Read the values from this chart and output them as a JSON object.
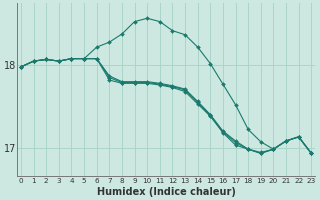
{
  "xlabel": "Humidex (Indice chaleur)",
  "background_color": "#cce8e0",
  "grid_color": "#aad4ca",
  "line_color": "#1a7a6e",
  "x_values": [
    0,
    1,
    2,
    3,
    4,
    5,
    6,
    7,
    8,
    9,
    10,
    11,
    12,
    13,
    14,
    15,
    16,
    17,
    18,
    19,
    20,
    21,
    22,
    23
  ],
  "series": [
    [
      17.98,
      18.05,
      18.07,
      18.05,
      18.08,
      18.08,
      18.08,
      17.82,
      17.78,
      17.78,
      17.78,
      17.76,
      17.73,
      17.68,
      17.53,
      17.38,
      17.18,
      17.03,
      16.98,
      16.93,
      16.98,
      17.08,
      17.13,
      16.93
    ],
    [
      17.98,
      18.05,
      18.07,
      18.05,
      18.08,
      18.08,
      18.22,
      18.28,
      18.38,
      18.53,
      18.57,
      18.53,
      18.42,
      18.37,
      18.22,
      18.02,
      17.77,
      17.52,
      17.22,
      17.07,
      16.98,
      17.08,
      17.13,
      16.93
    ],
    [
      17.98,
      18.05,
      18.07,
      18.05,
      18.08,
      18.08,
      18.08,
      17.87,
      17.8,
      17.8,
      17.8,
      17.78,
      17.75,
      17.71,
      17.56,
      17.4,
      17.2,
      17.08,
      16.98,
      16.94,
      16.98,
      17.08,
      17.13,
      16.93
    ],
    [
      17.98,
      18.05,
      18.07,
      18.05,
      18.08,
      18.08,
      18.08,
      17.85,
      17.79,
      17.79,
      17.79,
      17.77,
      17.74,
      17.7,
      17.55,
      17.39,
      17.19,
      17.06,
      16.98,
      16.93,
      16.98,
      17.08,
      17.13,
      16.93
    ]
  ],
  "ylim": [
    16.65,
    18.75
  ],
  "yticks": [
    17.0,
    18.0
  ],
  "xlim": [
    -0.3,
    23.3
  ],
  "xtick_labels": [
    "0",
    "1",
    "2",
    "3",
    "4",
    "5",
    "6",
    "7",
    "8",
    "9",
    "10",
    "11",
    "12",
    "13",
    "14",
    "15",
    "16",
    "17",
    "18",
    "19",
    "20",
    "21",
    "22",
    "23"
  ]
}
